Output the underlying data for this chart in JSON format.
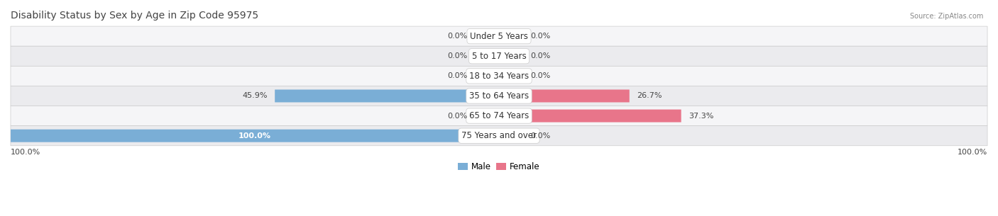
{
  "title": "Disability Status by Sex by Age in Zip Code 95975",
  "source": "Source: ZipAtlas.com",
  "categories": [
    "Under 5 Years",
    "5 to 17 Years",
    "18 to 34 Years",
    "35 to 64 Years",
    "65 to 74 Years",
    "75 Years and over"
  ],
  "male_values": [
    0.0,
    0.0,
    0.0,
    45.9,
    0.0,
    100.0
  ],
  "female_values": [
    0.0,
    0.0,
    0.0,
    26.7,
    37.3,
    0.0
  ],
  "male_color": "#7aaed6",
  "female_color": "#e8758a",
  "male_color_stub": "#aecde8",
  "female_color_stub": "#f0aabb",
  "row_bg_even": "#f5f5f7",
  "row_bg_odd": "#ebebee",
  "title_color": "#444444",
  "text_color": "#444444",
  "source_color": "#888888",
  "label_fontsize": 8.5,
  "title_fontsize": 10,
  "max_val": 100.0,
  "stub_val": 5.0,
  "legend_male": "Male",
  "legend_female": "Female"
}
